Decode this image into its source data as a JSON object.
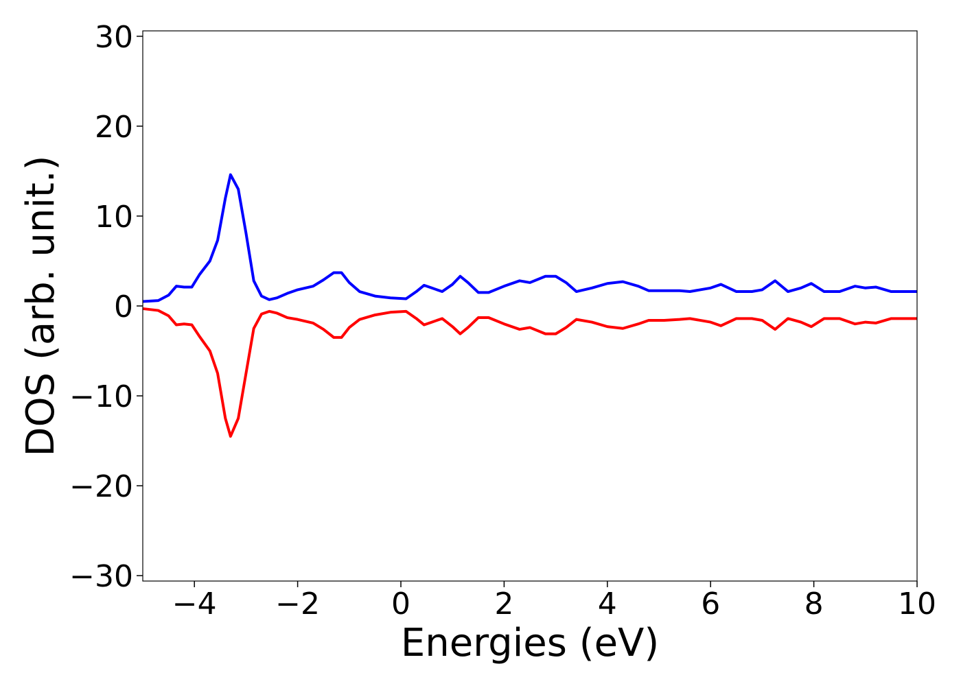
{
  "chart_data": {
    "type": "line",
    "xlabel": "Energies (eV)",
    "ylabel": "DOS (arb. unit.)",
    "x": [
      -5,
      -4.7,
      -4.5,
      -4.35,
      -4.2,
      -4.05,
      -3.9,
      -3.7,
      -3.55,
      -3.4,
      -3.3,
      -3.15,
      -3.0,
      -2.85,
      -2.7,
      -2.55,
      -2.4,
      -2.2,
      -2.0,
      -1.7,
      -1.5,
      -1.3,
      -1.15,
      -1.0,
      -0.8,
      -0.5,
      -0.2,
      0.1,
      0.3,
      0.45,
      0.6,
      0.8,
      1.0,
      1.15,
      1.3,
      1.5,
      1.7,
      2.0,
      2.3,
      2.5,
      2.8,
      3.0,
      3.2,
      3.4,
      3.7,
      4.0,
      4.3,
      4.6,
      4.8,
      5.1,
      5.4,
      5.6,
      6.0,
      6.2,
      6.5,
      6.8,
      7.0,
      7.25,
      7.5,
      7.75,
      7.95,
      8.2,
      8.5,
      8.8,
      9.0,
      9.2,
      9.5,
      10
    ],
    "series": [
      {
        "color": "#0000ff",
        "values": [
          0.5,
          0.6,
          1.2,
          2.2,
          2.1,
          2.1,
          3.5,
          5,
          7.3,
          12,
          14.6,
          13,
          8.1,
          2.8,
          1.1,
          0.7,
          0.9,
          1.4,
          1.8,
          2.2,
          2.9,
          3.7,
          3.7,
          2.6,
          1.6,
          1.1,
          0.9,
          0.8,
          1.6,
          2.3,
          2.0,
          1.6,
          2.4,
          3.3,
          2.6,
          1.5,
          1.5,
          2.2,
          2.8,
          2.6,
          3.3,
          3.3,
          2.6,
          1.6,
          2.0,
          2.5,
          2.7,
          2.2,
          1.7,
          1.7,
          1.7,
          1.6,
          2.0,
          2.4,
          1.6,
          1.6,
          1.8,
          2.8,
          1.6,
          2.0,
          2.5,
          1.6,
          1.6,
          2.2,
          2.0,
          2.1,
          1.6,
          1.6
        ]
      },
      {
        "color": "#ff0000",
        "values": [
          -0.3,
          -0.5,
          -1.1,
          -2.1,
          -2.0,
          -2.1,
          -3.4,
          -5,
          -7.5,
          -12.5,
          -14.5,
          -12.5,
          -7.5,
          -2.5,
          -0.9,
          -0.6,
          -0.8,
          -1.3,
          -1.5,
          -1.9,
          -2.6,
          -3.5,
          -3.5,
          -2.4,
          -1.5,
          -1.0,
          -0.7,
          -0.6,
          -1.4,
          -2.1,
          -1.8,
          -1.4,
          -2.3,
          -3.1,
          -2.4,
          -1.3,
          -1.3,
          -2.0,
          -2.6,
          -2.4,
          -3.1,
          -3.1,
          -2.4,
          -1.5,
          -1.8,
          -2.3,
          -2.5,
          -2.0,
          -1.6,
          -1.6,
          -1.5,
          -1.4,
          -1.8,
          -2.2,
          -1.4,
          -1.4,
          -1.6,
          -2.6,
          -1.4,
          -1.8,
          -2.3,
          -1.4,
          -1.4,
          -2.0,
          -1.8,
          -1.9,
          -1.4,
          -1.4
        ]
      }
    ],
    "xlim": [
      -5,
      10
    ],
    "xticks": [
      {
        "value": -4,
        "label": "−4"
      },
      {
        "value": -2,
        "label": "−2"
      },
      0,
      2,
      4,
      6,
      8,
      10
    ],
    "ylim": [
      -30.6,
      30.6
    ],
    "yticks": [
      {
        "value": -30,
        "label": "−30"
      },
      {
        "value": -20,
        "label": "−20"
      },
      {
        "value": -10,
        "label": "−10"
      },
      0,
      10,
      20,
      30
    ]
  }
}
